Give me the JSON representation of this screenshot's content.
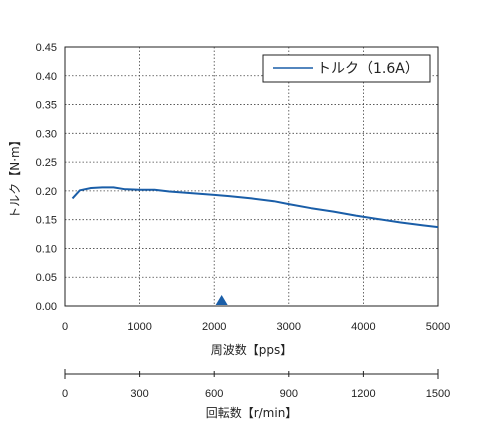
{
  "chart_data": {
    "type": "line",
    "xlabel": "周波数【pps】",
    "ylabel": "トルク【N·m】",
    "xlim": [
      0,
      5000
    ],
    "ylim": [
      0,
      0.45
    ],
    "x_ticks": [
      "0",
      "1000",
      "2000",
      "3000",
      "4000",
      "5000"
    ],
    "y_ticks": [
      "0.00",
      "0.05",
      "0.10",
      "0.15",
      "0.20",
      "0.25",
      "0.30",
      "0.35",
      "0.40",
      "0.45"
    ],
    "grid": true,
    "legend_position": "top-right",
    "marker": {
      "x": 2100,
      "shape": "triangle",
      "color": "#1a5ea8"
    },
    "series": [
      {
        "name": "トルク（1.6A）",
        "color": "#1a5ea8",
        "x": [
          100,
          200,
          350,
          500,
          650,
          800,
          1000,
          1200,
          1400,
          1600,
          1800,
          2000,
          2200,
          2500,
          2800,
          3000,
          3300,
          3600,
          3900,
          4200,
          4500,
          4800,
          5000
        ],
        "y": [
          0.187,
          0.201,
          0.205,
          0.206,
          0.206,
          0.203,
          0.202,
          0.202,
          0.199,
          0.197,
          0.195,
          0.193,
          0.191,
          0.187,
          0.182,
          0.177,
          0.17,
          0.164,
          0.157,
          0.151,
          0.145,
          0.14,
          0.137
        ]
      }
    ],
    "secondary_axis": {
      "label": "回転数【r/min】",
      "range": [
        0,
        1500
      ],
      "ticks": [
        "0",
        "300",
        "600",
        "900",
        "1200",
        "1500"
      ]
    }
  }
}
